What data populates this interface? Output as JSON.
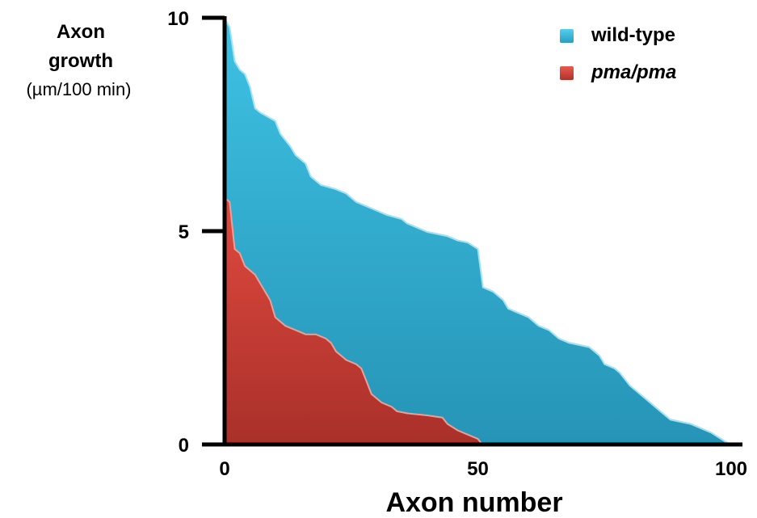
{
  "chart_data": {
    "type": "area",
    "xlabel": "Axon number",
    "ylabel": [
      "Axon",
      "growth",
      "(µm/100 min)"
    ],
    "xlim": [
      0,
      100
    ],
    "ylim": [
      0,
      10
    ],
    "xticks": [
      0,
      50,
      100
    ],
    "yticks": [
      0,
      5,
      10
    ],
    "legend_position": "top-right",
    "series": [
      {
        "name": "wild-type",
        "color": "#2fa6c9",
        "points": [
          [
            0,
            10
          ],
          [
            1,
            9.8
          ],
          [
            2,
            9.0
          ],
          [
            3,
            8.8
          ],
          [
            4,
            8.7
          ],
          [
            5,
            8.4
          ],
          [
            6,
            7.9
          ],
          [
            7,
            7.8
          ],
          [
            10,
            7.6
          ],
          [
            11,
            7.3
          ],
          [
            13,
            7.0
          ],
          [
            14,
            6.8
          ],
          [
            16,
            6.6
          ],
          [
            17,
            6.3
          ],
          [
            19,
            6.1
          ],
          [
            22,
            6.0
          ],
          [
            24,
            5.9
          ],
          [
            25,
            5.8
          ],
          [
            26,
            5.7
          ],
          [
            30,
            5.5
          ],
          [
            32,
            5.4
          ],
          [
            35,
            5.3
          ],
          [
            36,
            5.2
          ],
          [
            38,
            5.1
          ],
          [
            40,
            5.0
          ],
          [
            42,
            4.95
          ],
          [
            44,
            4.9
          ],
          [
            46,
            4.8
          ],
          [
            48,
            4.75
          ],
          [
            50,
            4.6
          ],
          [
            51,
            3.7
          ],
          [
            53,
            3.6
          ],
          [
            55,
            3.4
          ],
          [
            56,
            3.2
          ],
          [
            58,
            3.1
          ],
          [
            60,
            3.0
          ],
          [
            62,
            2.8
          ],
          [
            64,
            2.7
          ],
          [
            66,
            2.5
          ],
          [
            68,
            2.4
          ],
          [
            70,
            2.35
          ],
          [
            72,
            2.3
          ],
          [
            73,
            2.2
          ],
          [
            74,
            2.1
          ],
          [
            75,
            1.9
          ],
          [
            77,
            1.8
          ],
          [
            78,
            1.7
          ],
          [
            80,
            1.4
          ],
          [
            82,
            1.2
          ],
          [
            84,
            1.0
          ],
          [
            86,
            0.8
          ],
          [
            88,
            0.6
          ],
          [
            90,
            0.55
          ],
          [
            92,
            0.5
          ],
          [
            94,
            0.4
          ],
          [
            96,
            0.3
          ],
          [
            98,
            0.15
          ],
          [
            100,
            0
          ]
        ]
      },
      {
        "name": "pma/pma",
        "color": "#c93a33",
        "points": [
          [
            0,
            5.8
          ],
          [
            1,
            5.7
          ],
          [
            2,
            4.6
          ],
          [
            3,
            4.5
          ],
          [
            4,
            4.2
          ],
          [
            6,
            4.0
          ],
          [
            7,
            3.8
          ],
          [
            9,
            3.4
          ],
          [
            10,
            3.0
          ],
          [
            12,
            2.8
          ],
          [
            14,
            2.7
          ],
          [
            16,
            2.6
          ],
          [
            18,
            2.6
          ],
          [
            20,
            2.5
          ],
          [
            21,
            2.4
          ],
          [
            22,
            2.2
          ],
          [
            24,
            2.0
          ],
          [
            26,
            1.9
          ],
          [
            27,
            1.8
          ],
          [
            28,
            1.5
          ],
          [
            29,
            1.2
          ],
          [
            30,
            1.1
          ],
          [
            31,
            1.0
          ],
          [
            33,
            0.9
          ],
          [
            34,
            0.8
          ],
          [
            36,
            0.75
          ],
          [
            40,
            0.7
          ],
          [
            43,
            0.65
          ],
          [
            44,
            0.5
          ],
          [
            46,
            0.35
          ],
          [
            48,
            0.25
          ],
          [
            50,
            0.15
          ],
          [
            51,
            0
          ]
        ]
      }
    ]
  }
}
